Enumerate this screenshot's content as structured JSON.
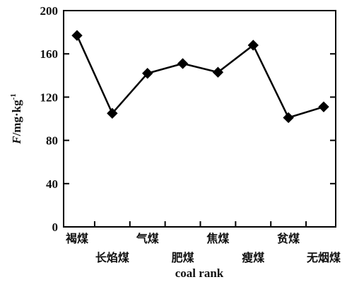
{
  "chart_data": {
    "type": "line",
    "categories": [
      "褐煤",
      "长焰煤",
      "气煤",
      "肥煤",
      "焦煤",
      "瘦煤",
      "贫煤",
      "无烟煤"
    ],
    "values": [
      177,
      105,
      142,
      151,
      143,
      168,
      101,
      111
    ],
    "yticks": [
      0,
      40,
      80,
      120,
      160,
      200
    ],
    "ylim": [
      0,
      200
    ],
    "xlabel": "coal rank",
    "ylabel_italic": "F",
    "ylabel_rest": "/mg·kg",
    "ylabel_sup": "-1",
    "grid": false,
    "legend": "none",
    "line_color": "#000000",
    "marker": "diamond"
  }
}
